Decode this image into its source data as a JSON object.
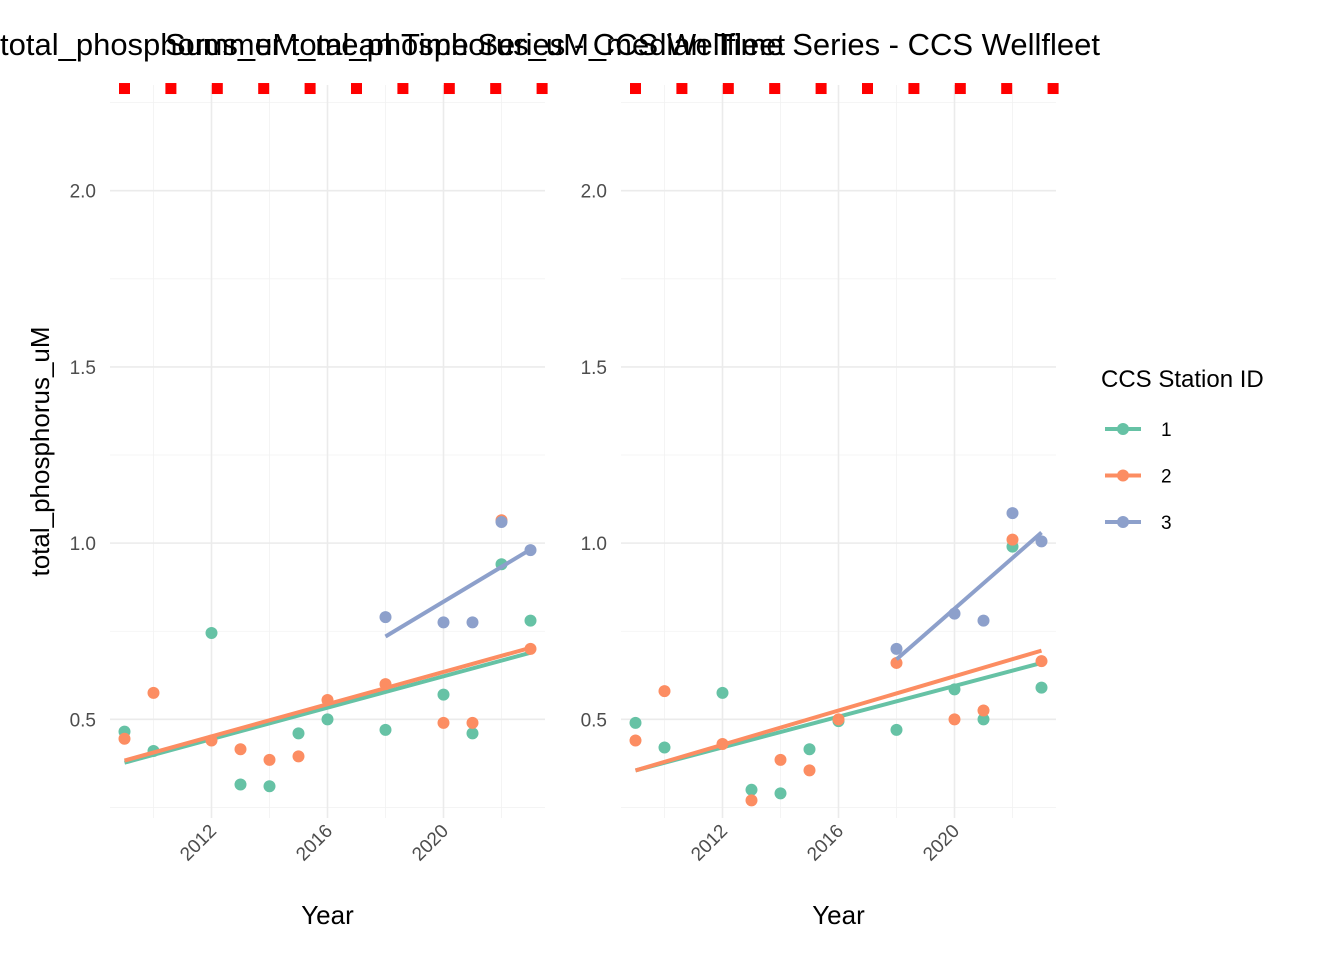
{
  "legend": {
    "title": "CCS Station ID",
    "items": [
      {
        "label": "1",
        "color": "#66c2a5"
      },
      {
        "label": "2",
        "color": "#fc8d62"
      },
      {
        "label": "3",
        "color": "#8da0cb"
      }
    ]
  },
  "marker_color": "#ff0000",
  "chart_data": [
    {
      "type": "scatter",
      "title": "total_phosphorus_uM_mean Time Series - CCS Wellfleet",
      "xlabel": "Year",
      "ylabel": "total_phosphorus_uM",
      "xlim": [
        2008.5,
        2023.5
      ],
      "ylim": [
        0.22,
        2.3
      ],
      "xticks": [
        2012,
        2016,
        2020
      ],
      "yticks": [
        0.5,
        1.0,
        1.5,
        2.0
      ],
      "ytick_labels": [
        "0.5",
        "1.0",
        "1.5",
        "2.0"
      ],
      "grid": true,
      "markers": {
        "y": 2.29,
        "x": [
          2009,
          2010.6,
          2012.2,
          2013.8,
          2015.4,
          2017,
          2018.6,
          2020.2,
          2021.8,
          2023.4
        ]
      },
      "series": [
        {
          "name": "1",
          "color": "#66c2a5",
          "points": [
            [
              2009,
              0.465
            ],
            [
              2010,
              0.41
            ],
            [
              2012,
              0.745
            ],
            [
              2013,
              0.315
            ],
            [
              2014,
              0.31
            ],
            [
              2015,
              0.46
            ],
            [
              2016,
              0.5
            ],
            [
              2018,
              0.47
            ],
            [
              2020,
              0.57
            ],
            [
              2021,
              0.46
            ],
            [
              2022,
              0.94
            ],
            [
              2023,
              0.78
            ]
          ],
          "trend": [
            [
              2009,
              0.377
            ],
            [
              2023,
              0.689
            ]
          ]
        },
        {
          "name": "2",
          "color": "#fc8d62",
          "points": [
            [
              2009,
              0.445
            ],
            [
              2010,
              0.575
            ],
            [
              2012,
              0.44
            ],
            [
              2013,
              0.415
            ],
            [
              2014,
              0.385
            ],
            [
              2015,
              0.395
            ],
            [
              2016,
              0.555
            ],
            [
              2018,
              0.6
            ],
            [
              2020,
              0.49
            ],
            [
              2021,
              0.49
            ],
            [
              2022,
              1.065
            ],
            [
              2023,
              0.7
            ]
          ],
          "trend": [
            [
              2009,
              0.383
            ],
            [
              2023,
              0.703
            ]
          ]
        },
        {
          "name": "3",
          "color": "#8da0cb",
          "points": [
            [
              2018,
              0.79
            ],
            [
              2020,
              0.775
            ],
            [
              2021,
              0.775
            ],
            [
              2022,
              1.06
            ],
            [
              2023,
              0.98
            ]
          ],
          "trend": [
            [
              2018,
              0.735
            ],
            [
              2023,
              0.982
            ]
          ]
        }
      ]
    },
    {
      "type": "scatter",
      "title": "Summer total_phosphorus_uM_median Time Series - CCS Wellfleet",
      "xlabel": "Year",
      "ylabel": "",
      "xlim": [
        2008.5,
        2023.5
      ],
      "ylim": [
        0.22,
        2.3
      ],
      "xticks": [
        2012,
        2016,
        2020
      ],
      "yticks": [
        0.5,
        1.0,
        1.5,
        2.0
      ],
      "ytick_labels": [
        "0.5",
        "1.0",
        "1.5",
        "2.0"
      ],
      "grid": true,
      "markers": {
        "y": 2.29,
        "x": [
          2009,
          2010.6,
          2012.2,
          2013.8,
          2015.4,
          2017,
          2018.6,
          2020.2,
          2021.8,
          2023.4
        ]
      },
      "series": [
        {
          "name": "1",
          "color": "#66c2a5",
          "points": [
            [
              2009,
              0.49
            ],
            [
              2010,
              0.42
            ],
            [
              2012,
              0.575
            ],
            [
              2013,
              0.3
            ],
            [
              2014,
              0.29
            ],
            [
              2015,
              0.415
            ],
            [
              2016,
              0.495
            ],
            [
              2018,
              0.47
            ],
            [
              2020,
              0.585
            ],
            [
              2021,
              0.5
            ],
            [
              2022,
              0.99
            ],
            [
              2023,
              0.59
            ]
          ],
          "trend": [
            [
              2009,
              0.355
            ],
            [
              2023,
              0.66
            ]
          ]
        },
        {
          "name": "2",
          "color": "#fc8d62",
          "points": [
            [
              2009,
              0.44
            ],
            [
              2010,
              0.58
            ],
            [
              2012,
              0.43
            ],
            [
              2013,
              0.27
            ],
            [
              2014,
              0.385
            ],
            [
              2015,
              0.355
            ],
            [
              2016,
              0.5
            ],
            [
              2018,
              0.66
            ],
            [
              2020,
              0.5
            ],
            [
              2021,
              0.525
            ],
            [
              2022,
              1.01
            ],
            [
              2023,
              0.665
            ]
          ],
          "trend": [
            [
              2009,
              0.355
            ],
            [
              2023,
              0.695
            ]
          ]
        },
        {
          "name": "3",
          "color": "#8da0cb",
          "points": [
            [
              2018,
              0.7
            ],
            [
              2020,
              0.8
            ],
            [
              2021,
              0.78
            ],
            [
              2022,
              1.085
            ],
            [
              2023,
              1.005
            ]
          ],
          "trend": [
            [
              2018,
              0.67
            ],
            [
              2023,
              1.03
            ]
          ]
        }
      ]
    }
  ]
}
